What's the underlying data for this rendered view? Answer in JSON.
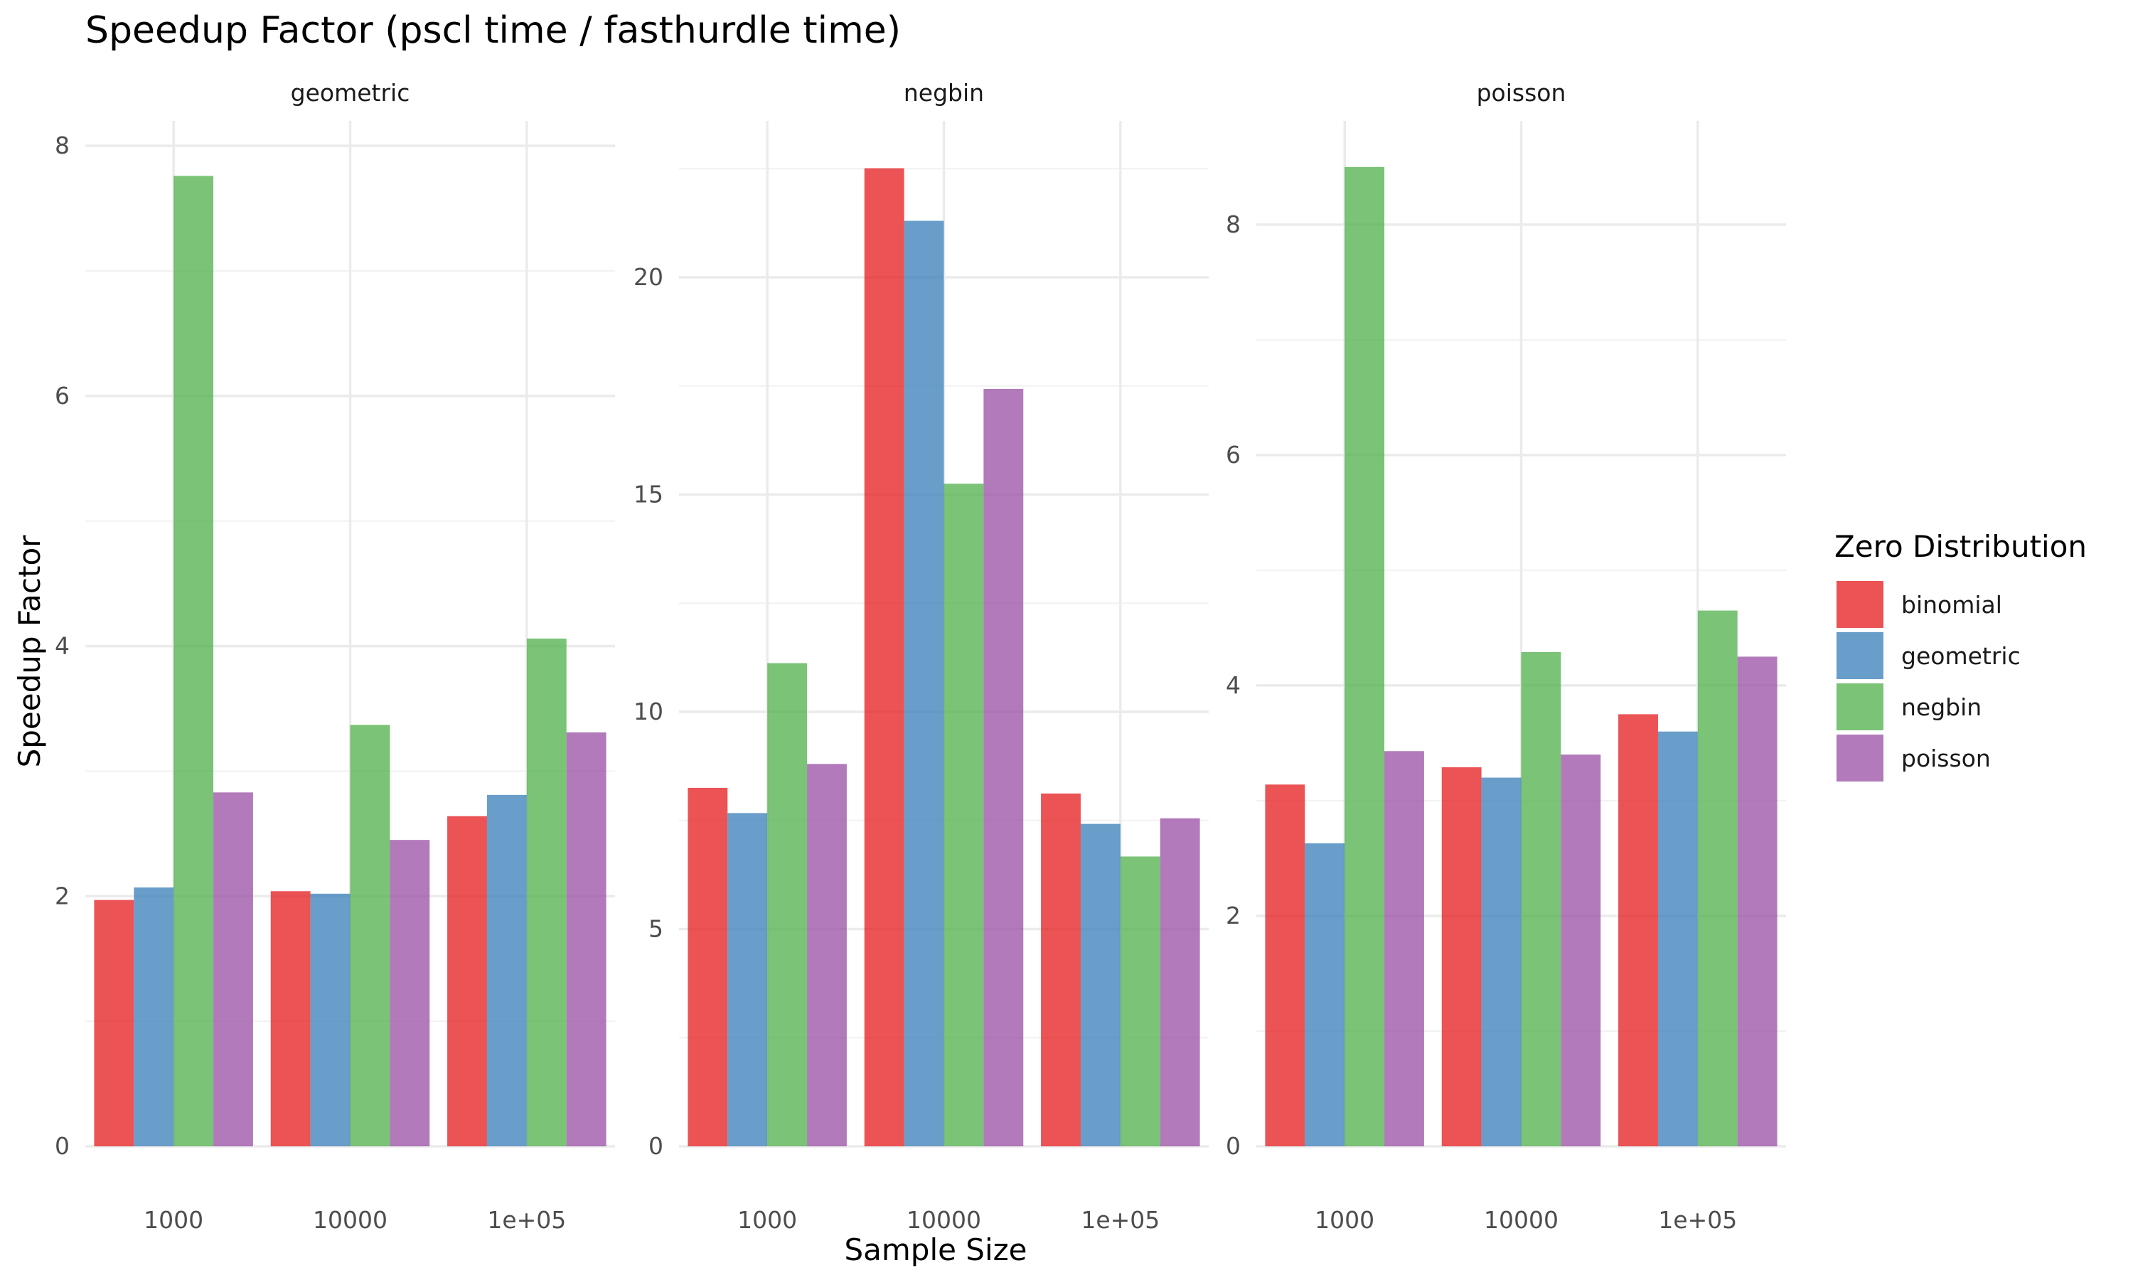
{
  "chart_data": {
    "type": "bar",
    "title": "Speedup Factor (pscl time / fasthurdle time)",
    "xlabel": "Sample Size",
    "ylabel": "Speedup Factor",
    "legend": {
      "title": "Zero Distribution",
      "placement": "right",
      "entries": [
        "binomial",
        "geometric",
        "negbin",
        "poisson"
      ]
    },
    "colors": {
      "binomial": "#E41A1C",
      "geometric": "#377EB8",
      "negbin": "#4DAF4A",
      "poisson": "#984EA3"
    },
    "grid": true,
    "categories": [
      "1000",
      "10000",
      "1e+05"
    ],
    "facets": [
      {
        "name": "geometric",
        "ylim": [
          0,
          8.2
        ],
        "yticks": [
          0,
          2,
          4,
          6,
          8
        ],
        "series": [
          {
            "name": "binomial",
            "values": [
              1.97,
              2.04,
              2.64
            ]
          },
          {
            "name": "geometric",
            "values": [
              2.07,
              2.02,
              2.81
            ]
          },
          {
            "name": "negbin",
            "values": [
              7.76,
              3.37,
              4.06
            ]
          },
          {
            "name": "poisson",
            "values": [
              2.83,
              2.45,
              3.31
            ]
          }
        ]
      },
      {
        "name": "negbin",
        "ylim": [
          0,
          23.6
        ],
        "yticks": [
          0,
          5,
          10,
          15,
          20
        ],
        "series": [
          {
            "name": "binomial",
            "values": [
              8.25,
              22.51,
              8.12
            ]
          },
          {
            "name": "geometric",
            "values": [
              7.67,
              21.3,
              7.42
            ]
          },
          {
            "name": "negbin",
            "values": [
              11.12,
              15.25,
              6.67
            ]
          },
          {
            "name": "poisson",
            "values": [
              8.8,
              17.43,
              7.55
            ]
          }
        ]
      },
      {
        "name": "poisson",
        "ylim": [
          0,
          8.9
        ],
        "yticks": [
          0,
          2,
          4,
          6,
          8
        ],
        "series": [
          {
            "name": "binomial",
            "values": [
              3.14,
              3.29,
              3.75
            ]
          },
          {
            "name": "geometric",
            "values": [
              2.63,
              3.2,
              3.6
            ]
          },
          {
            "name": "negbin",
            "values": [
              8.5,
              4.29,
              4.65
            ]
          },
          {
            "name": "poisson",
            "values": [
              3.43,
              3.4,
              4.25
            ]
          }
        ]
      }
    ]
  }
}
